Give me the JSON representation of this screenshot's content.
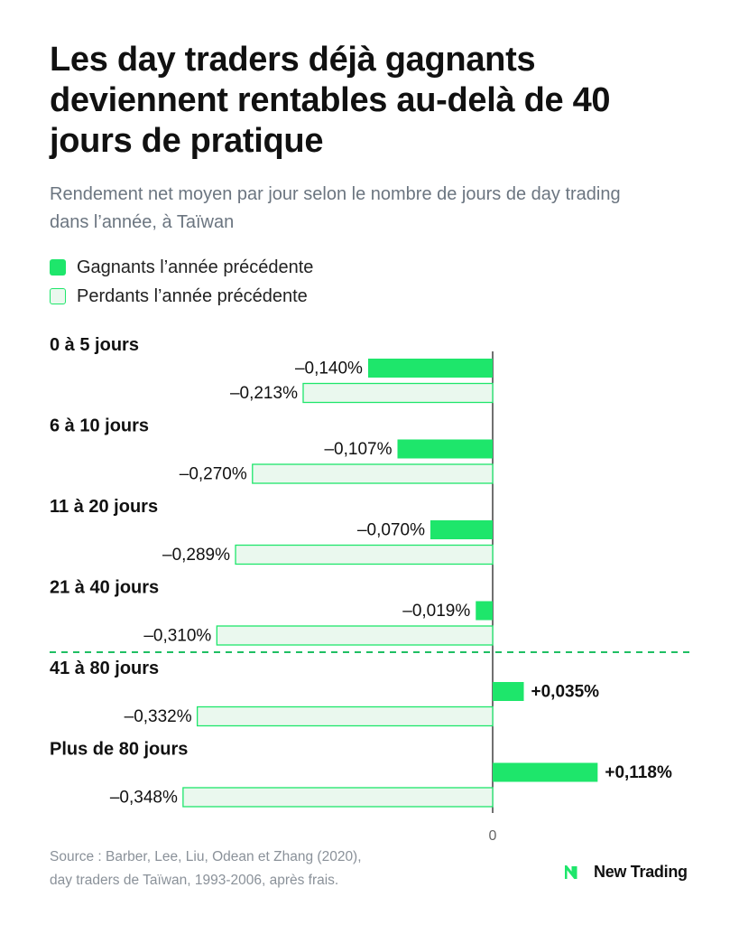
{
  "title": "Les day traders déjà gagnants deviennent rentables au-delà de 40 jours de pratique",
  "subtitle": "Rendement net moyen par jour selon le nombre de jours de day trading dans l’année, à Taïwan",
  "legend": {
    "winners": "Gagnants l’année précédente",
    "losers": "Perdants l’année précédente"
  },
  "colors": {
    "winners_fill": "#1ee66b",
    "losers_fill": "#eaf8ee",
    "losers_stroke": "#1ee66b",
    "threshold_line": "#1fbf63"
  },
  "chart_data": {
    "type": "bar",
    "orientation": "horizontal",
    "categories": [
      "0 à 5 jours",
      "6 à 10 jours",
      "11 à 20 jours",
      "21 à 40 jours",
      "41 à 80 jours",
      "Plus de 80 jours"
    ],
    "series": [
      {
        "name": "Gagnants l’année précédente",
        "values": [
          -0.14,
          -0.107,
          -0.07,
          -0.019,
          0.035,
          0.118
        ],
        "labels": [
          "–0,140%",
          "–0,107%",
          "–0,070%",
          "–0,019%",
          "+0,035%",
          "+0,118%"
        ]
      },
      {
        "name": "Perdants l’année précédente",
        "values": [
          -0.213,
          -0.27,
          -0.289,
          -0.31,
          -0.332,
          -0.348
        ],
        "labels": [
          "–0,213%",
          "–0,270%",
          "–0,289%",
          "–0,310%",
          "–0,332%",
          "–0,348%"
        ]
      }
    ],
    "zero_label": "0",
    "threshold_between": [
      "21 à 40 jours",
      "41 à 80 jours"
    ],
    "grid": false
  },
  "source": {
    "line1": "Source : Barber, Lee, Liu, Odean et Zhang (2020),",
    "line2": "day traders de Taïwan, 1993-2006, après frais."
  },
  "brand": {
    "name": "New Trading",
    "icon": "new-trading-logo-icon"
  }
}
